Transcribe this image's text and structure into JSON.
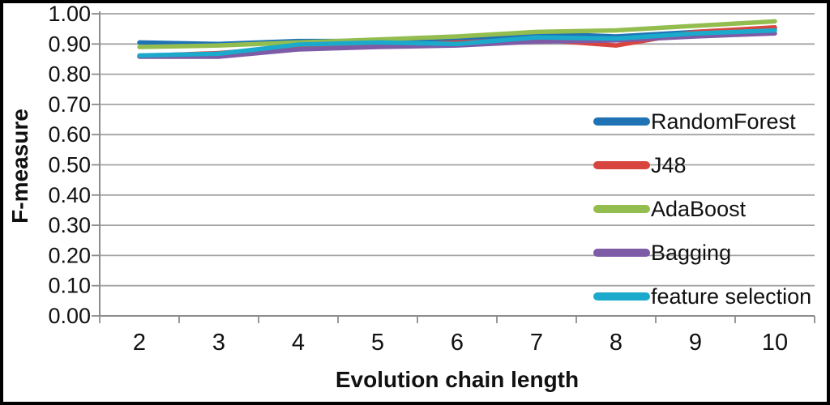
{
  "figure": {
    "background": "#FFFFFF",
    "border_color": "#000000"
  },
  "chart_data": {
    "type": "line",
    "title": "",
    "xlabel": "Evolution chain length",
    "ylabel": "F-measure",
    "x": [
      "2",
      "3",
      "4",
      "5",
      "6",
      "7",
      "8",
      "9",
      "10"
    ],
    "x_numeric": [
      2,
      3,
      4,
      5,
      6,
      7,
      8,
      9,
      10
    ],
    "ylim": [
      0.0,
      1.0
    ],
    "ytick_step": 0.1,
    "ytick_labels": [
      "0.00",
      "0.10",
      "0.20",
      "0.30",
      "0.40",
      "0.50",
      "0.60",
      "0.70",
      "0.80",
      "0.90",
      "1.00"
    ],
    "grid": true,
    "legend_position": "inside-right",
    "gridline_color": "#A3A3A3",
    "axis_color": "#8C8C8C",
    "text_color": "#111111",
    "series": [
      {
        "name": "RandomForest",
        "color": "#1F73B5",
        "values": [
          0.905,
          0.9,
          0.91,
          0.91,
          0.915,
          0.935,
          0.925,
          0.94,
          0.95
        ]
      },
      {
        "name": "J48",
        "color": "#D8453F",
        "values": [
          0.86,
          0.87,
          0.89,
          0.895,
          0.905,
          0.915,
          0.895,
          0.94,
          0.955
        ]
      },
      {
        "name": "AdaBoost",
        "color": "#94BD4F",
        "values": [
          0.89,
          0.895,
          0.905,
          0.915,
          0.925,
          0.94,
          0.945,
          0.96,
          0.975
        ]
      },
      {
        "name": "Bagging",
        "color": "#7D5BA6",
        "values": [
          0.858,
          0.858,
          0.882,
          0.89,
          0.895,
          0.908,
          0.912,
          0.925,
          0.935
        ]
      },
      {
        "name": "feature selection",
        "color": "#1BAACB",
        "values": [
          0.862,
          0.868,
          0.898,
          0.905,
          0.9,
          0.922,
          0.918,
          0.935,
          0.945
        ]
      }
    ]
  }
}
